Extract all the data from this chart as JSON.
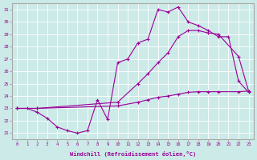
{
  "xlabel": "Windchill (Refroidissement éolien,°C)",
  "background_color": "#cceae7",
  "line_color": "#990099",
  "xlim": [
    -0.5,
    23.5
  ],
  "ylim": [
    20.5,
    31.5
  ],
  "yticks": [
    21,
    22,
    23,
    24,
    25,
    26,
    27,
    28,
    29,
    30,
    31
  ],
  "xticks": [
    0,
    1,
    2,
    3,
    4,
    5,
    6,
    7,
    8,
    9,
    10,
    11,
    12,
    13,
    14,
    15,
    16,
    17,
    18,
    19,
    20,
    21,
    22,
    23
  ],
  "series1_x": [
    0,
    1,
    2,
    3,
    4,
    5,
    6,
    7,
    8,
    9,
    10,
    11,
    12,
    13,
    14,
    15,
    16,
    17,
    18,
    19,
    20,
    21,
    22,
    23
  ],
  "series1_y": [
    23.0,
    23.0,
    22.7,
    22.2,
    21.5,
    21.2,
    21.0,
    21.2,
    23.7,
    22.1,
    26.7,
    27.0,
    28.3,
    28.6,
    31.0,
    30.8,
    31.2,
    30.0,
    29.7,
    29.3,
    28.8,
    28.8,
    25.2,
    24.3
  ],
  "series2_x": [
    0,
    2,
    10,
    12,
    13,
    14,
    15,
    16,
    17,
    18,
    19,
    20,
    22,
    23
  ],
  "series2_y": [
    23.0,
    23.0,
    23.5,
    25.0,
    25.8,
    26.7,
    27.5,
    28.8,
    29.3,
    29.3,
    29.1,
    29.0,
    27.2,
    24.4
  ],
  "series3_x": [
    0,
    2,
    10,
    12,
    13,
    14,
    15,
    16,
    17,
    18,
    19,
    20,
    22,
    23
  ],
  "series3_y": [
    23.0,
    23.0,
    23.2,
    23.5,
    23.7,
    23.9,
    24.0,
    24.15,
    24.3,
    24.35,
    24.35,
    24.35,
    24.35,
    24.4
  ]
}
